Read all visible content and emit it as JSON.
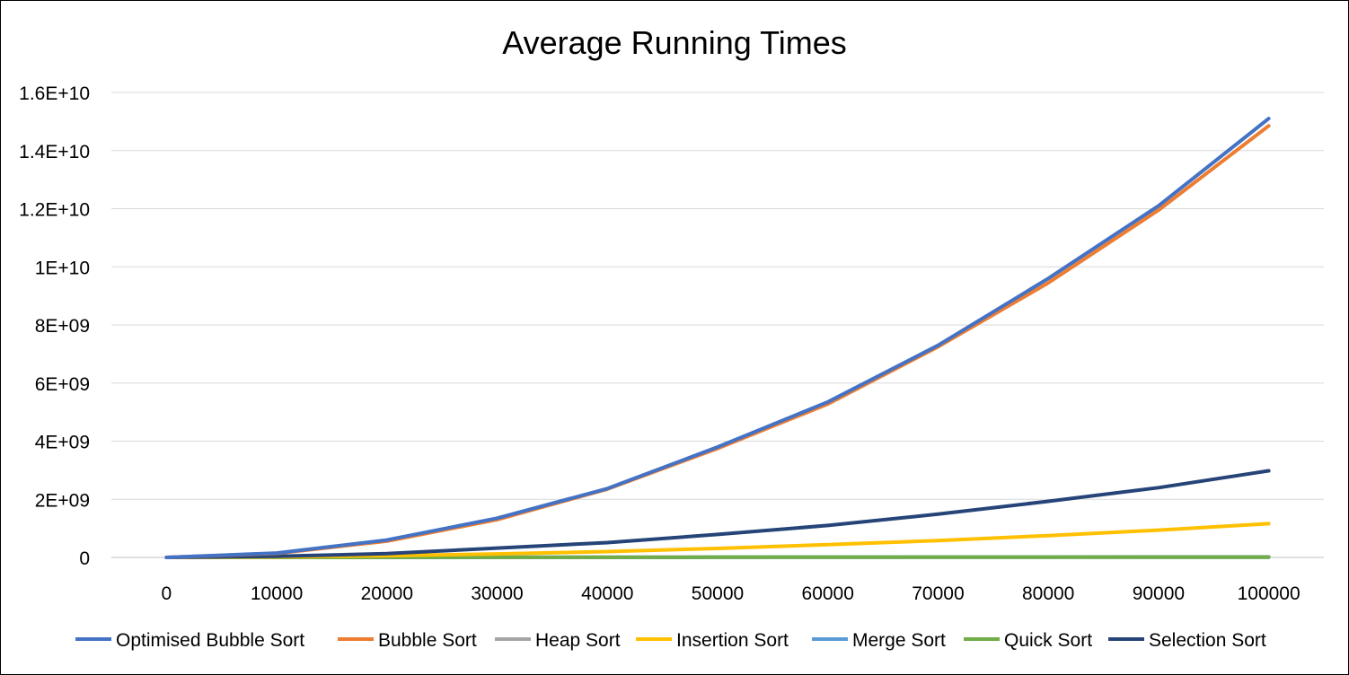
{
  "chart_data": {
    "type": "line",
    "title": "Average Running Times",
    "xlabel": "",
    "ylabel": "",
    "categories": [
      "0",
      "10000",
      "20000",
      "30000",
      "40000",
      "50000",
      "60000",
      "70000",
      "80000",
      "90000",
      "100000"
    ],
    "y_ticks": [
      "0",
      "2E+09",
      "4E+09",
      "6E+09",
      "8E+09",
      "1E+10",
      "1.2E+10",
      "1.4E+10",
      "1.6E+10"
    ],
    "ylim": [
      0,
      16000000000
    ],
    "grid": true,
    "legend_position": "bottom",
    "series": [
      {
        "name": "Optimised Bubble Sort",
        "color": "#4472C4",
        "values": [
          0,
          150000000,
          600000000,
          1350000000,
          2370000000,
          3800000000,
          5350000000,
          7300000000,
          9600000000,
          12100000000,
          15100000000
        ]
      },
      {
        "name": "Bubble Sort",
        "color": "#ED7D31",
        "values": [
          0,
          140000000,
          560000000,
          1300000000,
          2350000000,
          3750000000,
          5280000000,
          7250000000,
          9450000000,
          11950000000,
          14850000000
        ]
      },
      {
        "name": "Heap Sort",
        "color": "#A5A5A5",
        "values": [
          0,
          2000000,
          4000000,
          6000000,
          8000000,
          10000000,
          12000000,
          14000000,
          16000000,
          18000000,
          20000000
        ]
      },
      {
        "name": "Insertion Sort",
        "color": "#FFC000",
        "values": [
          0,
          20000000,
          60000000,
          120000000,
          200000000,
          310000000,
          440000000,
          580000000,
          750000000,
          940000000,
          1160000000
        ]
      },
      {
        "name": "Merge Sort",
        "color": "#5B9BD5",
        "values": [
          0,
          1000000,
          2000000,
          3000000,
          4000000,
          5000000,
          6000000,
          7000000,
          8000000,
          9000000,
          10000000
        ]
      },
      {
        "name": "Quick Sort",
        "color": "#70AD47",
        "values": [
          0,
          1000000,
          2000000,
          3000000,
          4000000,
          5000000,
          6000000,
          7000000,
          8000000,
          9000000,
          10000000
        ]
      },
      {
        "name": "Selection Sort",
        "color": "#264478",
        "values": [
          0,
          40000000,
          130000000,
          320000000,
          510000000,
          790000000,
          1100000000,
          1490000000,
          1930000000,
          2400000000,
          2980000000
        ]
      }
    ]
  }
}
